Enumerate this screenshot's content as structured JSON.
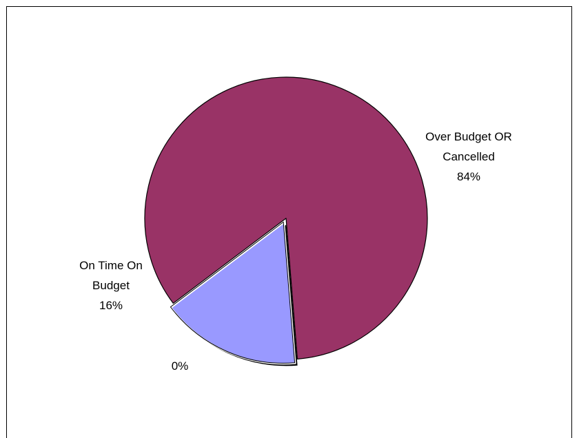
{
  "chart_data": {
    "type": "pie",
    "slices": [
      {
        "label_lines": [
          "Over Budget OR",
          "Cancelled"
        ],
        "percent_label": "84%",
        "value": 84,
        "color": "#993366"
      },
      {
        "label_lines": [
          "On Time On",
          "Budget"
        ],
        "percent_label": "16%",
        "value": 16,
        "color": "#9999ff",
        "exploded": true
      },
      {
        "label_lines": [],
        "percent_label": "0%",
        "value": 0,
        "color": "#ffffcc"
      }
    ],
    "legend": false
  }
}
